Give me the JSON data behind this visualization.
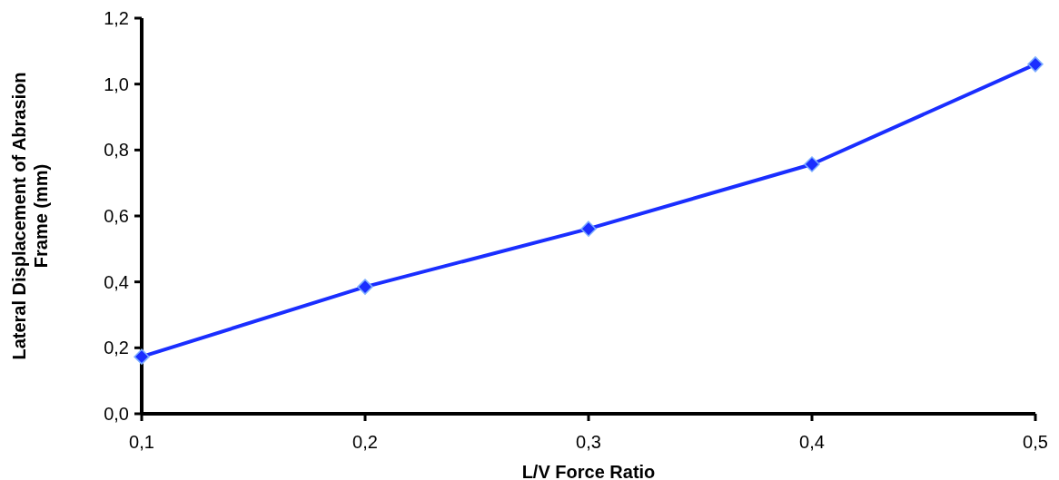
{
  "chart_data": {
    "type": "line",
    "xlabel": "L/V Force Ratio",
    "ylabel": "Lateral Displacement of Abrasion Frame (mm)",
    "x": [
      0.1,
      0.2,
      0.3,
      0.4,
      0.5
    ],
    "series": [
      {
        "color": "#1a2eff",
        "values": [
          0.173,
          0.385,
          0.561,
          0.757,
          1.06
        ]
      }
    ],
    "xlim": [
      0.1,
      0.5
    ],
    "ylim": [
      0,
      1.2
    ],
    "xticks": [
      {
        "value": 0.1,
        "label": "0,1"
      },
      {
        "value": 0.2,
        "label": "0,2"
      },
      {
        "value": 0.3,
        "label": "0,3"
      },
      {
        "value": 0.4,
        "label": "0,4"
      },
      {
        "value": 0.5,
        "label": "0,5"
      }
    ],
    "yticks": [
      {
        "value": 0,
        "label": "0,0"
      },
      {
        "value": 0.2,
        "label": "0,2"
      },
      {
        "value": 0.4,
        "label": "0,4"
      },
      {
        "value": 0.6,
        "label": "0,6"
      },
      {
        "value": 0.8,
        "label": "0,8"
      },
      {
        "value": 1,
        "label": "1,0"
      },
      {
        "value": 1.2,
        "label": "1,2"
      }
    ],
    "marker": "diamond",
    "line_style": "solid",
    "grid": false
  }
}
